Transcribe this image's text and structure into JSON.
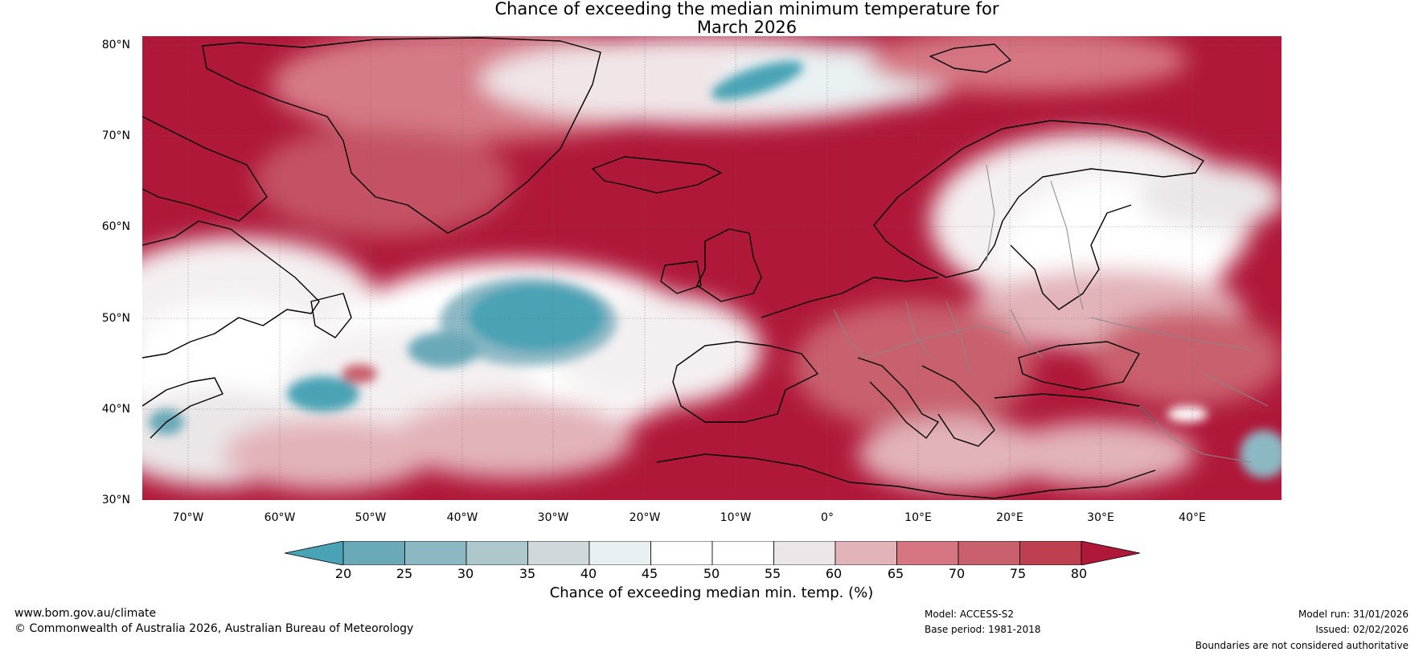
{
  "title": {
    "line1": "Chance of exceeding the median minimum temperature for",
    "line2": "March 2026"
  },
  "latitude_labels": [
    "80°N",
    "70°N",
    "60°N",
    "50°N",
    "40°N",
    "30°N"
  ],
  "longitude_labels": [
    "70°W",
    "60°W",
    "50°W",
    "40°W",
    "30°W",
    "20°W",
    "10°W",
    "0°",
    "10°E",
    "20°E",
    "30°E",
    "40°E"
  ],
  "colorbar": {
    "ticks": [
      "20",
      "25",
      "30",
      "35",
      "40",
      "45",
      "50",
      "55",
      "60",
      "65",
      "70",
      "75",
      "80"
    ],
    "colors": [
      "#4aa3b5",
      "#6aa9b8",
      "#8cb8c4",
      "#aec7cc",
      "#d0d8d9",
      "#e8f0f1",
      "#ffffff",
      "#ffffff",
      "#ebe7e8",
      "#e2b3b9",
      "#d57682",
      "#c9606e",
      "#bd3f50",
      "#b0183a"
    ],
    "label": "Chance of exceeding median min. temp. (%)"
  },
  "footer": {
    "website": "www.bom.gov.au/climate",
    "copyright": "© Commonwealth of Australia 2026, Australian Bureau of Meteorology",
    "model": "Model: ACCESS-S2",
    "base_period": "Base period: 1981-2018",
    "model_run": "Model run: 31/01/2026",
    "issued": "Issued: 02/02/2026",
    "disclaimer": "Boundaries are not considered authoritative"
  }
}
